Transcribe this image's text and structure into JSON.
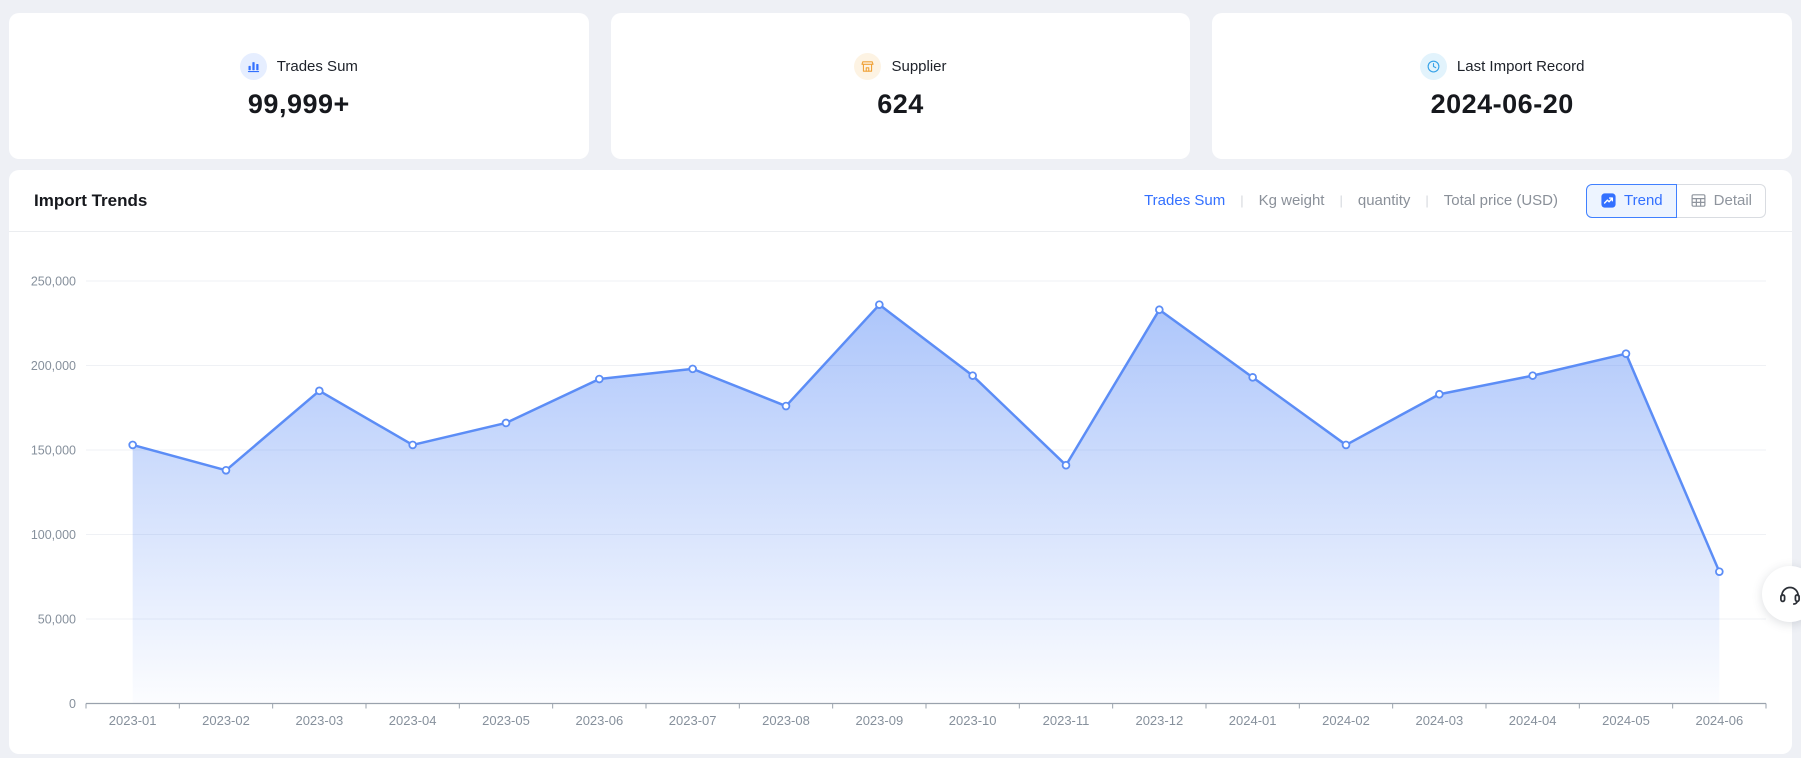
{
  "stat_cards": [
    {
      "label": "Trades Sum",
      "value": "99,999+",
      "icon": "bar-chart-icon",
      "icon_color": "#3370ff",
      "icon_bg": "#e6eeff"
    },
    {
      "label": "Supplier",
      "value": "624",
      "icon": "shop-icon",
      "icon_color": "#f0a33a",
      "icon_bg": "#fdf3e3"
    },
    {
      "label": "Last Import Record",
      "value": "2024-06-20",
      "icon": "clock-icon",
      "icon_color": "#38a3e8",
      "icon_bg": "#e2f3fc"
    }
  ],
  "chart_section": {
    "title": "Import Trends",
    "metric_tabs": {
      "separator": "|",
      "items": [
        {
          "label": "Trades Sum",
          "active": true
        },
        {
          "label": "Kg weight",
          "active": false
        },
        {
          "label": "quantity",
          "active": false
        },
        {
          "label": "Total price (USD)",
          "active": false
        }
      ]
    },
    "view_toggle": {
      "trend_label": "Trend",
      "detail_label": "Detail",
      "active": "Trend"
    }
  },
  "chart_data": {
    "type": "area",
    "title": "Import Trends",
    "series_name": "Trades Sum",
    "categories": [
      "2023-01",
      "2023-02",
      "2023-03",
      "2023-04",
      "2023-05",
      "2023-06",
      "2023-07",
      "2023-08",
      "2023-09",
      "2023-10",
      "2023-11",
      "2023-12",
      "2024-01",
      "2024-02",
      "2024-03",
      "2024-04",
      "2024-05",
      "2024-06"
    ],
    "values": [
      153000,
      138000,
      185000,
      153000,
      166000,
      192000,
      198000,
      176000,
      236000,
      194000,
      141000,
      233000,
      193000,
      153000,
      183000,
      194000,
      207000,
      78000
    ],
    "xlabel": "",
    "ylabel": "",
    "ylim": [
      0,
      250000
    ],
    "y_tick_step": 50000,
    "y_tick_labels": [
      "0",
      "50,000",
      "100,000",
      "150,000",
      "200,000",
      "250,000"
    ],
    "grid": true,
    "legend": "none",
    "line_color": "#5c8df6",
    "area_top_color": "rgba(92,141,246,0.5)",
    "area_bottom_color": "rgba(92,141,246,0.02)"
  },
  "floating": {
    "support_icon": "headset-icon"
  }
}
